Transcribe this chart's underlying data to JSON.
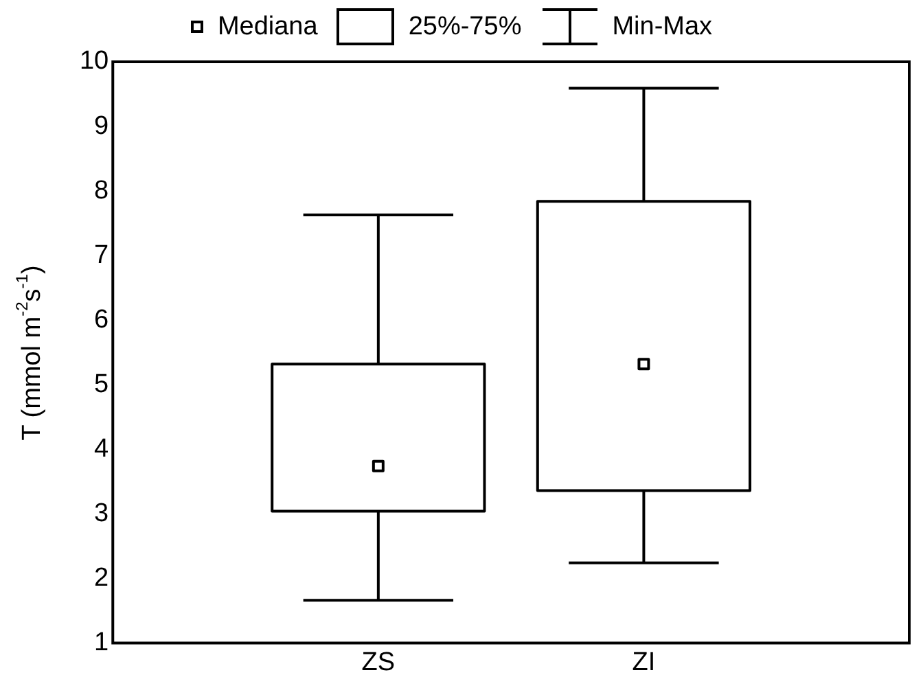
{
  "chart_data": {
    "type": "box",
    "ylabel": "T (mmol m$^{-2}$s$^{-1}$)",
    "categories": [
      "ZS",
      "ZI"
    ],
    "boxes": [
      {
        "low": 1.66,
        "q1": 3.04,
        "median": 3.74,
        "q3": 5.32,
        "high": 7.63
      },
      {
        "low": 2.24,
        "q1": 3.36,
        "median": 5.32,
        "q3": 7.84,
        "high": 9.59
      }
    ],
    "color": "#000000",
    "ylim": [
      1,
      10
    ],
    "yticks": [
      1,
      2,
      3,
      4,
      5,
      6,
      7,
      8,
      9,
      10
    ],
    "grid": false,
    "annotations": [
      "Mediana",
      "25%-75%",
      "Min-Max"
    ]
  }
}
